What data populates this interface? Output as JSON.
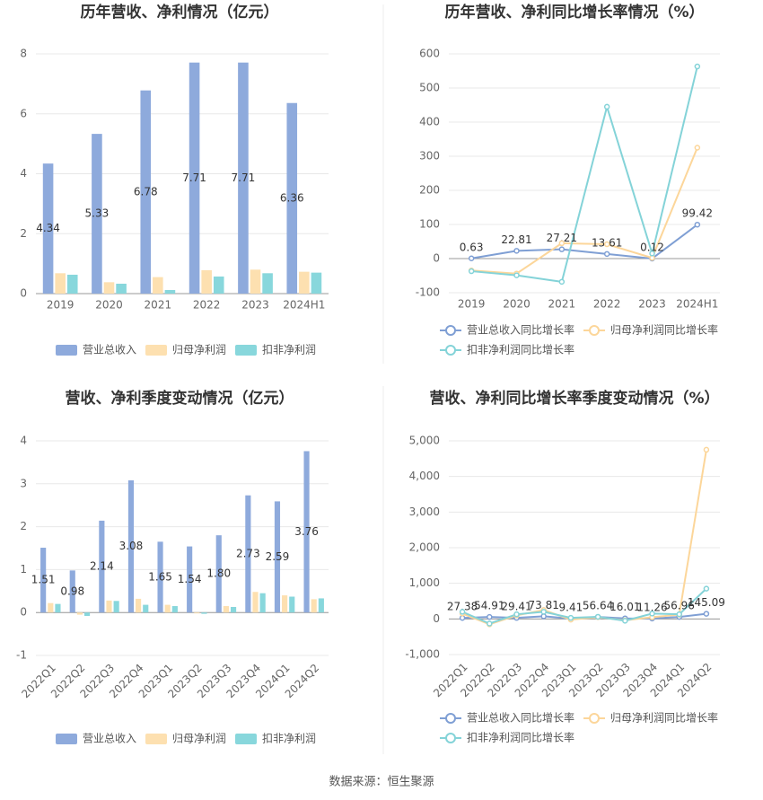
{
  "chart_data": [
    {
      "type": "bar",
      "title": "历年营收、净利情况（亿元）",
      "categories": [
        "2019",
        "2020",
        "2021",
        "2022",
        "2023",
        "2024H1"
      ],
      "series": [
        {
          "name": "营业总收入",
          "color": "#8eaadc",
          "values": [
            4.34,
            5.33,
            6.78,
            7.71,
            7.71,
            6.36
          ],
          "show_labels": true
        },
        {
          "name": "归母净利润",
          "color": "#fde0b0",
          "values": [
            0.68,
            0.38,
            0.55,
            0.78,
            0.8,
            0.73
          ]
        },
        {
          "name": "扣非净利润",
          "color": "#88d7dc",
          "values": [
            0.63,
            0.33,
            0.12,
            0.57,
            0.68,
            0.7
          ]
        }
      ],
      "ylim": [
        0,
        8
      ],
      "yticks": [
        0,
        2,
        4,
        6,
        8
      ],
      "grid": true
    },
    {
      "type": "line",
      "title": "历年营收、净利同比增长率情况（%）",
      "categories": [
        "2019",
        "2020",
        "2021",
        "2022",
        "2023",
        "2024H1"
      ],
      "series": [
        {
          "name": "营业总收入同比增长率",
          "color": "#7f9fd4",
          "values": [
            0.63,
            22.81,
            27.21,
            13.61,
            0.12,
            99.42
          ],
          "show_labels": true
        },
        {
          "name": "归母净利润同比增长率",
          "color": "#fcd69a",
          "values": [
            -35,
            -44,
            45,
            42,
            2,
            325
          ]
        },
        {
          "name": "扣非净利润同比增长率",
          "color": "#84d3d8",
          "values": [
            -37,
            -49,
            -68,
            445,
            15,
            563
          ]
        }
      ],
      "ylim": [
        -100,
        600
      ],
      "yticks": [
        -100,
        0,
        100,
        200,
        300,
        400,
        500,
        600
      ],
      "grid": true
    },
    {
      "type": "bar",
      "title": "营收、净利季度变动情况（亿元）",
      "categories": [
        "2022Q1",
        "2022Q2",
        "2022Q3",
        "2022Q4",
        "2023Q1",
        "2023Q2",
        "2023Q3",
        "2023Q4",
        "2024Q1",
        "2024Q2"
      ],
      "series": [
        {
          "name": "营业总收入",
          "color": "#8eaadc",
          "values": [
            1.51,
            0.98,
            2.14,
            3.08,
            1.65,
            1.54,
            1.8,
            2.73,
            2.59,
            3.76
          ],
          "value_labels": [
            "1.51",
            "0.98",
            "2.14",
            "3.08",
            "1.65",
            "1.54",
            "1.80",
            "2.73",
            "2.59",
            "3.76"
          ],
          "show_labels": true
        },
        {
          "name": "归母净利润",
          "color": "#fde0b0",
          "values": [
            0.22,
            -0.05,
            0.28,
            0.32,
            0.18,
            -0.02,
            0.15,
            0.48,
            0.4,
            0.31
          ]
        },
        {
          "name": "扣非净利润",
          "color": "#88d7dc",
          "values": [
            0.2,
            -0.08,
            0.27,
            0.18,
            0.15,
            -0.03,
            0.13,
            0.45,
            0.37,
            0.33
          ]
        }
      ],
      "ylim": [
        -1,
        4
      ],
      "yticks": [
        -1,
        0,
        1,
        2,
        3,
        4
      ],
      "grid": true
    },
    {
      "type": "line",
      "title": "营收、净利同比增长率季度变动情况（%）",
      "categories": [
        "2022Q1",
        "2022Q2",
        "2022Q3",
        "2022Q4",
        "2023Q1",
        "2023Q2",
        "2023Q3",
        "2023Q4",
        "2024Q1",
        "2024Q2"
      ],
      "series": [
        {
          "name": "营业总收入同比增长率",
          "color": "#7f9fd4",
          "values": [
            27.38,
            54.91,
            29.41,
            73.81,
            9.41,
            56.64,
            16.01,
            11.26,
            56.96,
            145.09
          ],
          "show_labels": true
        },
        {
          "name": "归母净利润同比增长率",
          "color": "#fcd69a",
          "values": [
            150,
            -150,
            100,
            250,
            -20,
            50,
            -40,
            50,
            120,
            4750
          ]
        },
        {
          "name": "扣非净利润同比增长率",
          "color": "#84d3d8",
          "values": [
            200,
            -130,
            130,
            200,
            30,
            60,
            -50,
            150,
            130,
            850
          ]
        }
      ],
      "ylim": [
        -1000,
        5000
      ],
      "yticks": [
        {
          "value": -1000,
          "label": "-1,000"
        },
        0,
        {
          "value": 1000,
          "label": "1,000"
        },
        {
          "value": 2000,
          "label": "2,000"
        },
        {
          "value": 3000,
          "label": "3,000"
        },
        {
          "value": 4000,
          "label": "4,000"
        },
        {
          "value": 5000,
          "label": "5,000"
        }
      ],
      "grid": true
    }
  ],
  "source": "数据来源：恒生聚源"
}
